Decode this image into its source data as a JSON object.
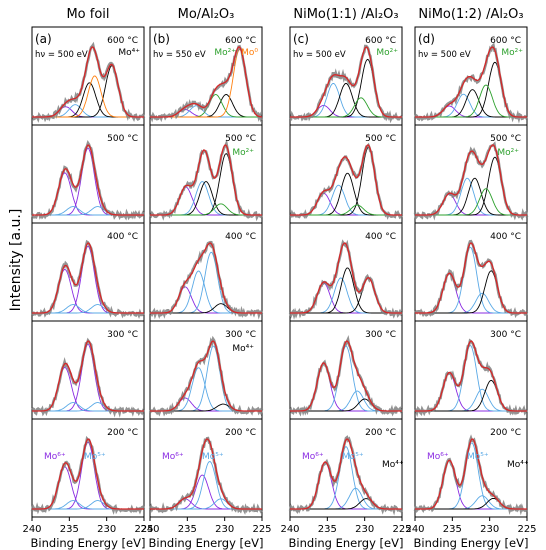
{
  "figure": {
    "ylabel": "Intensity [a.u.]",
    "xlabel": "Binding Energy [eV]"
  },
  "colors": {
    "data": "#808080",
    "fit": "#d62728",
    "mo6": "#8a2be2",
    "mo5": "#5aa9e6",
    "mo4": "#000000",
    "mo2": "#2ca02c",
    "mo0": "#ff7f0e"
  },
  "chart_data": [
    {
      "type": "line",
      "panel": "(a)",
      "title": "Mo foil",
      "xlabel": "Binding Energy [eV]",
      "ylabel": "Intensity [a.u.]",
      "x_ticks": [
        240,
        235,
        230,
        225
      ],
      "xlim": [
        240,
        225
      ],
      "photon_energy": "hν = 500 eV",
      "temps": [
        {
          "label": "600 °C",
          "annotations": [
            {
              "text": "Mo⁴⁺",
              "color": "#000000"
            }
          ],
          "components": [
            {
              "name": "Mo6+",
              "pos": 235.5,
              "h": 0.15
            },
            {
              "name": "Mo5+",
              "pos": 234.2,
              "h": 0.18
            },
            {
              "name": "Mo4+",
              "pos": 232.3,
              "h": 0.5
            },
            {
              "name": "Mo4+ b",
              "pos": 229.3,
              "h": 0.75
            },
            {
              "name": "Mo0",
              "pos": 231.6,
              "h": 0.6
            }
          ]
        },
        {
          "label": "500 °C",
          "annotations": [],
          "components": [
            {
              "name": "Mo6+",
              "pos": 235.6,
              "h": 0.6
            },
            {
              "name": "Mo6+ b",
              "pos": 232.5,
              "h": 0.95
            },
            {
              "name": "Mo5+",
              "pos": 234.5,
              "h": 0.12
            },
            {
              "name": "Mo5+ b",
              "pos": 231.2,
              "h": 0.12
            }
          ]
        },
        {
          "label": "400 °C",
          "annotations": [],
          "components": [
            {
              "name": "Mo6+",
              "pos": 235.6,
              "h": 0.62
            },
            {
              "name": "Mo6+ b",
              "pos": 232.5,
              "h": 0.95
            },
            {
              "name": "Mo5+",
              "pos": 234.5,
              "h": 0.12
            },
            {
              "name": "Mo5+ b",
              "pos": 231.2,
              "h": 0.12
            }
          ]
        },
        {
          "label": "300 °C",
          "annotations": [],
          "components": [
            {
              "name": "Mo6+",
              "pos": 235.6,
              "h": 0.62
            },
            {
              "name": "Mo6+ b",
              "pos": 232.5,
              "h": 0.95
            },
            {
              "name": "Mo5+",
              "pos": 234.5,
              "h": 0.12
            },
            {
              "name": "Mo5+ b",
              "pos": 231.2,
              "h": 0.12
            }
          ]
        },
        {
          "label": "200 °C",
          "annotations": [
            {
              "text": "Mo⁶⁺",
              "color": "#8a2be2"
            },
            {
              "text": "Mo⁵⁺",
              "color": "#5aa9e6"
            }
          ],
          "components": [
            {
              "name": "Mo6+",
              "pos": 235.6,
              "h": 0.6
            },
            {
              "name": "Mo6+ b",
              "pos": 232.5,
              "h": 0.95
            },
            {
              "name": "Mo5+",
              "pos": 234.5,
              "h": 0.12
            },
            {
              "name": "Mo5+ b",
              "pos": 231.2,
              "h": 0.12
            }
          ]
        }
      ]
    },
    {
      "type": "line",
      "panel": "(b)",
      "title": "Mo/Al₂O₃",
      "xlabel": "Binding Energy [eV]",
      "ylabel": "",
      "x_ticks": [
        240,
        235,
        230,
        225
      ],
      "xlim": [
        240,
        225
      ],
      "photon_energy": "hν = 550 eV",
      "temps": [
        {
          "label": "600 °C",
          "annotations": [
            {
              "text": "Mo²⁺",
              "color": "#2ca02c"
            },
            {
              "text": "Mo⁰",
              "color": "#ff7f0e"
            }
          ],
          "components": [
            {
              "name": "Mo6+",
              "pos": 235.3,
              "h": 0.1
            },
            {
              "name": "Mo5+",
              "pos": 233.8,
              "h": 0.15
            },
            {
              "name": "Mo4+",
              "pos": 229.8,
              "h": 0.3
            },
            {
              "name": "Mo2+",
              "pos": 231.2,
              "h": 0.3
            },
            {
              "name": "Mo0",
              "pos": 228.0,
              "h": 0.9
            }
          ]
        },
        {
          "label": "500 °C",
          "annotations": [
            {
              "text": "Mo²⁺",
              "color": "#2ca02c"
            }
          ],
          "components": [
            {
              "name": "Mo6+",
              "pos": 235.2,
              "h": 0.25
            },
            {
              "name": "Mo5+",
              "pos": 233.0,
              "h": 0.3
            },
            {
              "name": "Mo4+",
              "pos": 229.8,
              "h": 0.55
            },
            {
              "name": "Mo4+ b",
              "pos": 232.5,
              "h": 0.3
            },
            {
              "name": "Mo2+",
              "pos": 230.5,
              "h": 0.1
            }
          ]
        },
        {
          "label": "400 °C",
          "annotations": [],
          "components": [
            {
              "name": "Mo6+",
              "pos": 235.3,
              "h": 0.28
            },
            {
              "name": "Mo5+",
              "pos": 233.5,
              "h": 0.45
            },
            {
              "name": "Mo5+ b",
              "pos": 231.8,
              "h": 0.65
            },
            {
              "name": "Mo4+",
              "pos": 230.5,
              "h": 0.1
            }
          ]
        },
        {
          "label": "300 °C",
          "annotations": [
            {
              "text": "Mo⁴⁺",
              "color": "#000000"
            }
          ],
          "components": [
            {
              "name": "Mo6+",
              "pos": 235.3,
              "h": 0.15
            },
            {
              "name": "Mo5+",
              "pos": 233.5,
              "h": 0.5
            },
            {
              "name": "Mo5+ b",
              "pos": 231.5,
              "h": 0.75
            },
            {
              "name": "Mo4+",
              "pos": 230.2,
              "h": 0.08
            }
          ]
        },
        {
          "label": "200 °C",
          "annotations": [
            {
              "text": "Mo⁶⁺",
              "color": "#8a2be2"
            },
            {
              "text": "Mo⁵⁺",
              "color": "#5aa9e6"
            }
          ],
          "components": [
            {
              "name": "Mo6+",
              "pos": 235.3,
              "h": 0.15
            },
            {
              "name": "Mo6+ b",
              "pos": 233.0,
              "h": 0.5
            },
            {
              "name": "Mo5+",
              "pos": 232.0,
              "h": 0.7
            },
            {
              "name": "Mo5+ b",
              "pos": 230.5,
              "h": 0.15
            }
          ]
        }
      ]
    },
    {
      "type": "line",
      "panel": "(c)",
      "title": "NiMo(1:1) /Al₂O₃",
      "xlabel": "Binding Energy [eV]",
      "ylabel": "",
      "x_ticks": [
        240,
        235,
        230,
        225
      ],
      "xlim": [
        240,
        225
      ],
      "photon_energy": "hν = 500 eV",
      "temps": [
        {
          "label": "600 °C",
          "annotations": [
            {
              "text": "Mo²⁺",
              "color": "#2ca02c"
            }
          ],
          "components": [
            {
              "name": "Mo6+",
              "pos": 235.5,
              "h": 0.12
            },
            {
              "name": "Mo5+",
              "pos": 234.2,
              "h": 0.35
            },
            {
              "name": "Mo4+",
              "pos": 232.5,
              "h": 0.35
            },
            {
              "name": "Mo4+ b",
              "pos": 229.6,
              "h": 0.6
            },
            {
              "name": "Mo2+",
              "pos": 230.5,
              "h": 0.2
            }
          ]
        },
        {
          "label": "500 °C",
          "annotations": [],
          "components": [
            {
              "name": "Mo6+",
              "pos": 235.5,
              "h": 0.22
            },
            {
              "name": "Mo5+",
              "pos": 233.5,
              "h": 0.3
            },
            {
              "name": "Mo4+",
              "pos": 232.3,
              "h": 0.42
            },
            {
              "name": "Mo4+ b",
              "pos": 229.5,
              "h": 0.68
            },
            {
              "name": "Mo2+",
              "pos": 231.0,
              "h": 0.1
            }
          ]
        },
        {
          "label": "400 °C",
          "annotations": [],
          "components": [
            {
              "name": "Mo6+",
              "pos": 235.5,
              "h": 0.3
            },
            {
              "name": "Mo5+",
              "pos": 233.2,
              "h": 0.35
            },
            {
              "name": "Mo4+",
              "pos": 232.3,
              "h": 0.45
            },
            {
              "name": "Mo4+ b",
              "pos": 229.5,
              "h": 0.35
            }
          ]
        },
        {
          "label": "300 °C",
          "annotations": [],
          "components": [
            {
              "name": "Mo6+",
              "pos": 235.5,
              "h": 0.48
            },
            {
              "name": "Mo5+",
              "pos": 232.5,
              "h": 0.65
            },
            {
              "name": "Mo5+ b",
              "pos": 231.0,
              "h": 0.2
            },
            {
              "name": "Mo4+",
              "pos": 230.0,
              "h": 0.12
            }
          ]
        },
        {
          "label": "200 °C",
          "annotations": [
            {
              "text": "Mo⁶⁺",
              "color": "#8a2be2"
            },
            {
              "text": "Mo⁵⁺",
              "color": "#5aa9e6"
            },
            {
              "text": "Mo⁴⁺",
              "color": "#000000"
            }
          ],
          "components": [
            {
              "name": "Mo6+",
              "pos": 235.3,
              "h": 0.45
            },
            {
              "name": "Mo5+",
              "pos": 232.5,
              "h": 0.6
            },
            {
              "name": "Mo5+ b",
              "pos": 231.2,
              "h": 0.2
            },
            {
              "name": "Mo4+",
              "pos": 229.8,
              "h": 0.1
            }
          ]
        }
      ]
    },
    {
      "type": "line",
      "panel": "(d)",
      "title": "NiMo(1:2) /Al₂O₃",
      "xlabel": "Binding Energy [eV]",
      "ylabel": "",
      "x_ticks": [
        240,
        235,
        230,
        225
      ],
      "xlim": [
        240,
        225
      ],
      "photon_energy": "hν = 500 eV",
      "temps": [
        {
          "label": "600 °C",
          "annotations": [
            {
              "text": "Mo²⁺",
              "color": "#2ca02c"
            }
          ],
          "components": [
            {
              "name": "Mo6+",
              "pos": 235.4,
              "h": 0.12
            },
            {
              "name": "Mo5+",
              "pos": 233.5,
              "h": 0.25
            },
            {
              "name": "Mo4+",
              "pos": 232.3,
              "h": 0.3
            },
            {
              "name": "Mo4+ b",
              "pos": 229.3,
              "h": 0.6
            },
            {
              "name": "Mo2+",
              "pos": 230.5,
              "h": 0.35
            }
          ]
        },
        {
          "label": "500 °C",
          "annotations": [
            {
              "text": "Mo²⁺",
              "color": "#2ca02c"
            }
          ],
          "components": [
            {
              "name": "Mo6+",
              "pos": 235.4,
              "h": 0.2
            },
            {
              "name": "Mo5+",
              "pos": 233.0,
              "h": 0.35
            },
            {
              "name": "Mo4+",
              "pos": 232.0,
              "h": 0.35
            },
            {
              "name": "Mo4+ b",
              "pos": 229.3,
              "h": 0.55
            },
            {
              "name": "Mo2+",
              "pos": 230.5,
              "h": 0.25
            }
          ]
        },
        {
          "label": "400 °C",
          "annotations": [],
          "components": [
            {
              "name": "Mo6+",
              "pos": 235.4,
              "h": 0.3
            },
            {
              "name": "Mo5+",
              "pos": 232.6,
              "h": 0.5
            },
            {
              "name": "Mo5+ b",
              "pos": 231.0,
              "h": 0.15
            },
            {
              "name": "Mo4+",
              "pos": 229.8,
              "h": 0.32
            }
          ]
        },
        {
          "label": "300 °C",
          "annotations": [],
          "components": [
            {
              "name": "Mo6+",
              "pos": 235.4,
              "h": 0.35
            },
            {
              "name": "Mo5+",
              "pos": 232.6,
              "h": 0.6
            },
            {
              "name": "Mo5+ b",
              "pos": 231.0,
              "h": 0.2
            },
            {
              "name": "Mo4+",
              "pos": 229.8,
              "h": 0.28
            }
          ]
        },
        {
          "label": "200 °C",
          "annotations": [
            {
              "text": "Mo⁶⁺",
              "color": "#8a2be2"
            },
            {
              "text": "Mo⁵⁺",
              "color": "#5aa9e6"
            },
            {
              "text": "Mo⁴⁺",
              "color": "#000000"
            }
          ],
          "components": [
            {
              "name": "Mo6+",
              "pos": 235.4,
              "h": 0.55
            },
            {
              "name": "Mo5+",
              "pos": 232.4,
              "h": 0.75
            },
            {
              "name": "Mo5+ b",
              "pos": 231.0,
              "h": 0.15
            },
            {
              "name": "Mo4+",
              "pos": 229.5,
              "h": 0.12
            }
          ]
        }
      ]
    }
  ]
}
